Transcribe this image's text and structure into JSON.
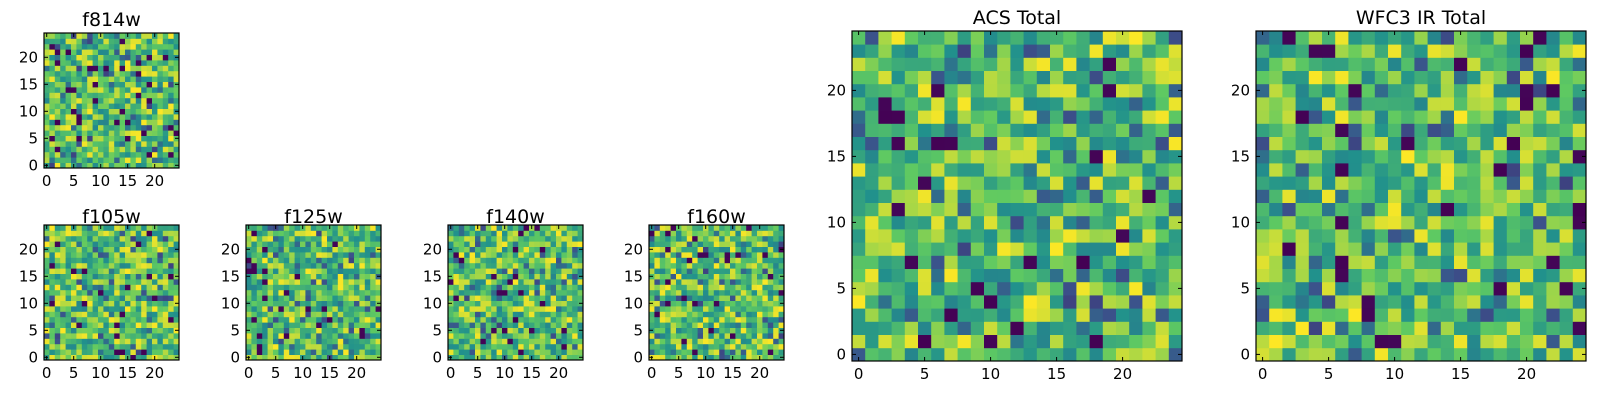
{
  "chart_data": [
    {
      "id": "f814w",
      "type": "heatmap",
      "title": "f814w",
      "grid_size": 25,
      "seed": 814,
      "colormap": "viridis",
      "value_range": [
        0,
        1
      ],
      "xlim": [
        0,
        24
      ],
      "ylim": [
        0,
        24
      ],
      "xticks": [
        0,
        5,
        10,
        15,
        20
      ],
      "yticks": [
        0,
        5,
        10,
        15,
        20
      ]
    },
    {
      "id": "f105w",
      "type": "heatmap",
      "title": "f105w",
      "grid_size": 25,
      "seed": 105,
      "colormap": "viridis",
      "value_range": [
        0,
        1
      ],
      "xlim": [
        0,
        24
      ],
      "ylim": [
        0,
        24
      ],
      "xticks": [
        0,
        5,
        10,
        15,
        20
      ],
      "yticks": [
        0,
        5,
        10,
        15,
        20
      ]
    },
    {
      "id": "f125w",
      "type": "heatmap",
      "title": "f125w",
      "grid_size": 25,
      "seed": 125,
      "colormap": "viridis",
      "value_range": [
        0,
        1
      ],
      "xlim": [
        0,
        24
      ],
      "ylim": [
        0,
        24
      ],
      "xticks": [
        0,
        5,
        10,
        15,
        20
      ],
      "yticks": [
        0,
        5,
        10,
        15,
        20
      ]
    },
    {
      "id": "f140w",
      "type": "heatmap",
      "title": "f140w",
      "grid_size": 25,
      "seed": 140,
      "colormap": "viridis",
      "value_range": [
        0,
        1
      ],
      "xlim": [
        0,
        24
      ],
      "ylim": [
        0,
        24
      ],
      "xticks": [
        0,
        5,
        10,
        15,
        20
      ],
      "yticks": [
        0,
        5,
        10,
        15,
        20
      ]
    },
    {
      "id": "f160w",
      "type": "heatmap",
      "title": "f160w",
      "grid_size": 25,
      "seed": 160,
      "colormap": "viridis",
      "value_range": [
        0,
        1
      ],
      "xlim": [
        0,
        24
      ],
      "ylim": [
        0,
        24
      ],
      "xticks": [
        0,
        5,
        10,
        15,
        20
      ],
      "yticks": [
        0,
        5,
        10,
        15,
        20
      ]
    },
    {
      "id": "acs_total",
      "type": "heatmap",
      "title": "ACS Total",
      "grid_size": 25,
      "seed": 7001,
      "colormap": "viridis",
      "value_range": [
        0,
        1
      ],
      "xlim": [
        0,
        24
      ],
      "ylim": [
        0,
        24
      ],
      "xticks": [
        0,
        5,
        10,
        15,
        20
      ],
      "yticks": [
        0,
        5,
        10,
        15,
        20
      ]
    },
    {
      "id": "wfc3_ir_total",
      "type": "heatmap",
      "title": "WFC3 IR Total",
      "grid_size": 25,
      "seed": 9003,
      "colormap": "viridis",
      "value_range": [
        0,
        1
      ],
      "xlim": [
        0,
        24
      ],
      "ylim": [
        0,
        24
      ],
      "xticks": [
        0,
        5,
        10,
        15,
        20
      ],
      "yticks": [
        0,
        5,
        10,
        15,
        20
      ]
    }
  ],
  "colors": {
    "viridis": [
      "#440154",
      "#3b528b",
      "#21918c",
      "#5ec962",
      "#fde725"
    ]
  }
}
